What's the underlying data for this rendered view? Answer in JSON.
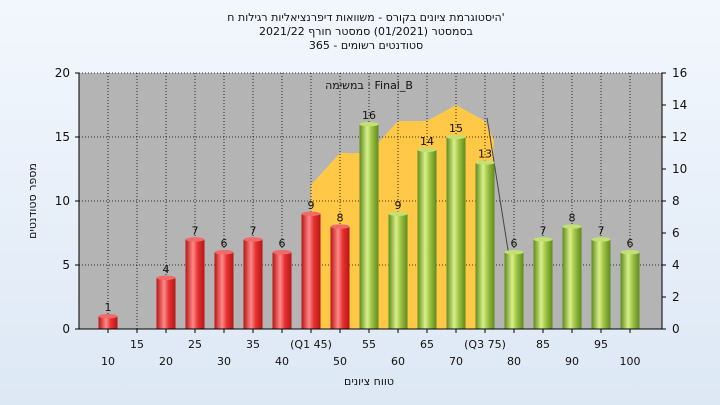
{
  "title": {
    "line1": "היסטוגרמת ציונים בקורס - משוואות דיפרנציאליות רגילות ח'",
    "line2": "בסמסטר  (01/2021)  סמסטר חורף  2021/22",
    "line3": "365 - סטודנטים רשומים"
  },
  "colors": {
    "plot_bg": "#b4b4b4",
    "bar_fail": "#e53232",
    "bar_pass": "#9cc244",
    "area": "#ffc846",
    "grid": "#000000"
  },
  "chart_data": {
    "type": "bar",
    "categories": [
      "10",
      "15",
      "20",
      "25",
      "30",
      "35",
      "40",
      "45",
      "50",
      "55",
      "60",
      "65",
      "70",
      "75",
      "80",
      "85",
      "90",
      "95",
      "100"
    ],
    "x_tick_labels": [
      "10",
      "15",
      "20",
      "25",
      "30",
      "35",
      "40",
      "(Q1 45)",
      "50",
      "55",
      "60",
      "65",
      "70",
      "(Q3 75)",
      "80",
      "85",
      "90",
      "95",
      "100"
    ],
    "values": [
      1,
      0,
      4,
      7,
      6,
      7,
      6,
      9,
      8,
      16,
      9,
      14,
      15,
      13,
      6,
      7,
      8,
      7,
      6
    ],
    "data_labels": [
      "1",
      "",
      "4",
      "7",
      "6",
      "7",
      "6",
      "9",
      "8",
      "16",
      "9",
      "14",
      "15",
      "13",
      "6",
      "7",
      "8",
      "7",
      "6"
    ],
    "bar_colors": [
      "fail",
      "fail",
      "fail",
      "fail",
      "fail",
      "fail",
      "fail",
      "fail",
      "fail",
      "pass",
      "pass",
      "pass",
      "pass",
      "pass",
      "pass",
      "pass",
      "pass",
      "pass",
      "pass"
    ],
    "area_series": {
      "label": "במשימה : Final_B",
      "axis": "right",
      "points": [
        [
          45,
          9
        ],
        [
          50,
          11
        ],
        [
          55,
          11
        ],
        [
          60,
          13
        ],
        [
          65,
          13
        ],
        [
          70,
          14
        ],
        [
          75,
          13
        ]
      ]
    },
    "xlabel": "טווח ציונים",
    "ylabel": "מספר סטודנטים",
    "ylim": [
      0,
      20
    ],
    "yticks": [
      0,
      5,
      10,
      15,
      20
    ],
    "y2lim": [
      0,
      16
    ],
    "y2ticks": [
      0,
      2,
      4,
      6,
      8,
      10,
      12,
      14,
      16
    ],
    "grid": true
  }
}
